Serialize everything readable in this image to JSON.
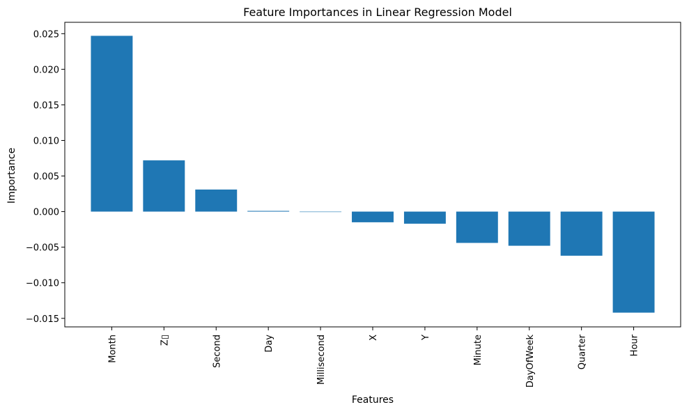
{
  "chart_data": {
    "type": "bar",
    "title": "Feature Importances in Linear Regression Model",
    "xlabel": "Features",
    "ylabel": "Importance",
    "categories": [
      "Month",
      "Z轴",
      "Second",
      "Day",
      "Millisecond",
      "X",
      "Y",
      "Minute",
      "DayOfWeek",
      "Quarter",
      "Hour"
    ],
    "category_display": [
      "Month",
      "Z▯",
      "Second",
      "Day",
      "Millisecond",
      "X",
      "Y",
      "Minute",
      "DayOfWeek",
      "Quarter",
      "Hour"
    ],
    "values": [
      0.0247,
      0.0072,
      0.0031,
      0.0001,
      0.0,
      -0.0015,
      -0.0017,
      -0.0044,
      -0.0048,
      -0.0062,
      -0.0142
    ],
    "ylim": [
      -0.0162,
      0.0266
    ],
    "yticks": [
      -0.015,
      -0.01,
      -0.005,
      0.0,
      0.005,
      0.01,
      0.015,
      0.02,
      0.025
    ],
    "ytick_labels": [
      "−0.015",
      "−0.010",
      "−0.005",
      "0.000",
      "0.005",
      "0.010",
      "0.015",
      "0.020",
      "0.025"
    ],
    "bar_color": "#1f77b4",
    "grid": false,
    "legend": "none"
  }
}
